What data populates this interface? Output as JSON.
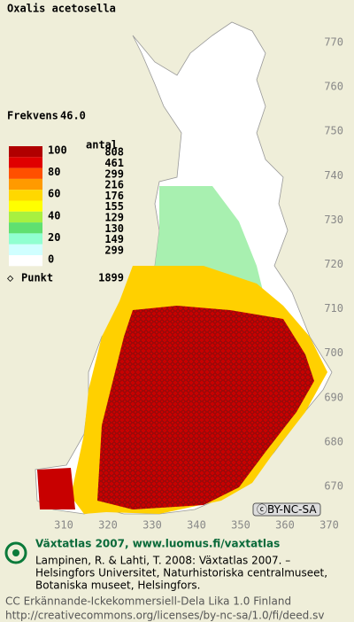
{
  "title": "Oxalis acetosella",
  "frequency": {
    "label": "Frekvens",
    "value": "46.0"
  },
  "legend": {
    "scale": [
      100,
      80,
      60,
      40,
      20,
      0
    ],
    "colors": [
      "#b00000",
      "#e00000",
      "#ff5000",
      "#ff9a00",
      "#ffd800",
      "#ffff00",
      "#a8f040",
      "#60e070",
      "#90ffd0",
      "#d0ffff"
    ],
    "count_header": "antal",
    "counts": [
      808,
      461,
      299,
      216,
      176,
      155,
      129,
      130,
      149,
      299
    ],
    "point": {
      "label": "Punkt",
      "count": 1899
    }
  },
  "map": {
    "northing": [
      770,
      760,
      750,
      740,
      730,
      720,
      710,
      700,
      690,
      680,
      670
    ],
    "easting": [
      310,
      320,
      330,
      340,
      350,
      360,
      370
    ]
  },
  "license_badge": "BY-NC-SA",
  "footer": {
    "heading": "Växtatlas 2007, www.luomus.fi/vaxtatlas",
    "citation": [
      "Lampinen, R. & Lahti, T. 2008: Växtatlas 2007. –",
      "Helsingfors Universitet, Naturhistoriska centralmuseet,",
      "Botaniska museet, Helsingfors."
    ],
    "license": [
      "CC Erkännande-Ickekommersiell-Dela Lika 1.0 Finland",
      "http://creativecommons.org/licenses/by-nc-sa/1.0/fi/deed.sv"
    ]
  }
}
